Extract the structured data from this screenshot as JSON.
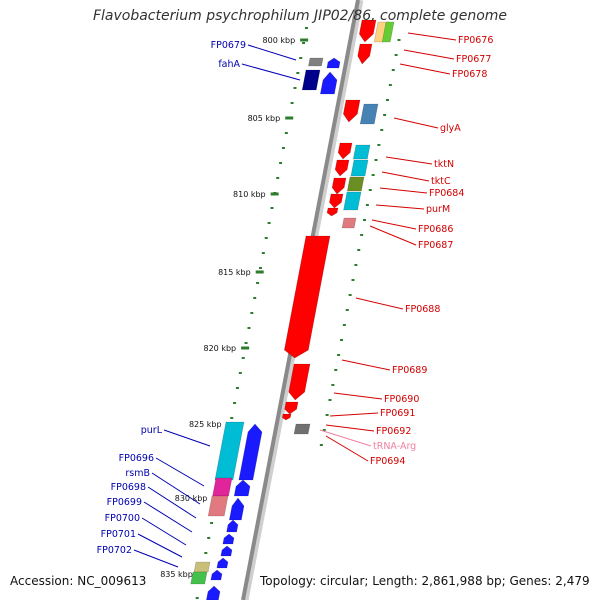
{
  "title": "Flavobacterium psychrophilum JIP02/86, complete genome",
  "footer": {
    "accession": "Accession: NC_009613",
    "info": "Topology: circular; Length: 2,861,988 bp; Genes: 2,479"
  },
  "colors": {
    "forward_label": "#0000b0",
    "reverse_label": "#d40000",
    "trna_label": "#f080a0",
    "tick": "#2e7d2e",
    "backbone": "#888888"
  },
  "ticks": [
    {
      "label": "800 kbp"
    },
    {
      "label": "805 kbp"
    },
    {
      "label": "810 kbp"
    },
    {
      "label": "815 kbp"
    },
    {
      "label": "820 kbp"
    },
    {
      "label": "825 kbp"
    },
    {
      "label": "830 kbp"
    },
    {
      "label": "835 kbp"
    }
  ],
  "genes_forward": [
    {
      "label": "FP0679",
      "color": "#808080"
    },
    {
      "label": "fahA",
      "color": "#00008b"
    },
    {
      "label": "purL",
      "color": "#00bcd4"
    },
    {
      "label": "FP0696",
      "color": "#e0259a"
    },
    {
      "label": "rsmB",
      "color": "#e07a80"
    },
    {
      "label": "FP0698",
      "color": "#1a1aff"
    },
    {
      "label": "FP0699",
      "color": "#1a1aff"
    },
    {
      "label": "FP0700",
      "color": "#1a1aff"
    },
    {
      "label": "FP0701",
      "color": "#1a1aff"
    },
    {
      "label": "FP0702",
      "color": "#1a1aff"
    }
  ],
  "genes_reverse": [
    {
      "label": "FP0676",
      "color": "#ff0000"
    },
    {
      "label": "FP0677",
      "color": "#ff0000"
    },
    {
      "label": "FP0678",
      "color": "#ff0000"
    },
    {
      "label": "glyA",
      "color": "#4682b4"
    },
    {
      "label": "tktN",
      "color": "#00bcd4"
    },
    {
      "label": "tktC",
      "color": "#00bcd4"
    },
    {
      "label": "FP0684",
      "color": "#6b8e23"
    },
    {
      "label": "purM",
      "color": "#00bcd4"
    },
    {
      "label": "FP0686",
      "color": "#ff0000"
    },
    {
      "label": "FP0687",
      "color": "#e07a80"
    },
    {
      "label": "FP0688",
      "color": "#ff0000"
    },
    {
      "label": "FP0689",
      "color": "#ff0000"
    },
    {
      "label": "FP0690",
      "color": "#ff0000"
    },
    {
      "label": "FP0691",
      "color": "#ff0000"
    },
    {
      "label": "FP0692",
      "color": "#707070"
    },
    {
      "label": "tRNA-Arg",
      "color": "#f080a0"
    },
    {
      "label": "FP0694",
      "color": "#ff0000"
    }
  ]
}
